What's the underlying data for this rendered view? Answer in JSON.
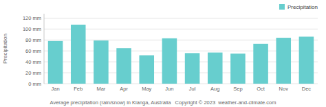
{
  "chart_data": {
    "type": "bar",
    "categories": [
      "Jan",
      "Feb",
      "Mar",
      "Apr",
      "May",
      "Jun",
      "Jul",
      "Aug",
      "Sep",
      "Oct",
      "Nov",
      "Dec"
    ],
    "series": [
      {
        "name": "Precipitation",
        "color": "#67CECE",
        "values": [
          78,
          108,
          79,
          65,
          52,
          83,
          56,
          57,
          55,
          73,
          84,
          86
        ]
      }
    ],
    "ylabel": "Precipitation",
    "ylim": [
      0,
      128
    ],
    "yticks": [
      {
        "value": 0,
        "label": "0 mm"
      },
      {
        "value": 20,
        "label": "20 mm"
      },
      {
        "value": 40,
        "label": "40 mm"
      },
      {
        "value": 60,
        "label": "60 mm"
      },
      {
        "value": 80,
        "label": "80 mm"
      },
      {
        "value": 100,
        "label": "100 mm"
      },
      {
        "value": 120,
        "label": "120 mm"
      }
    ],
    "grid": true,
    "legend": "upper right",
    "annotations": [
      "Average precipitation (rain/snow) in Kianga, Australia   Copyright © 2023  weather-and-climate.com"
    ]
  }
}
